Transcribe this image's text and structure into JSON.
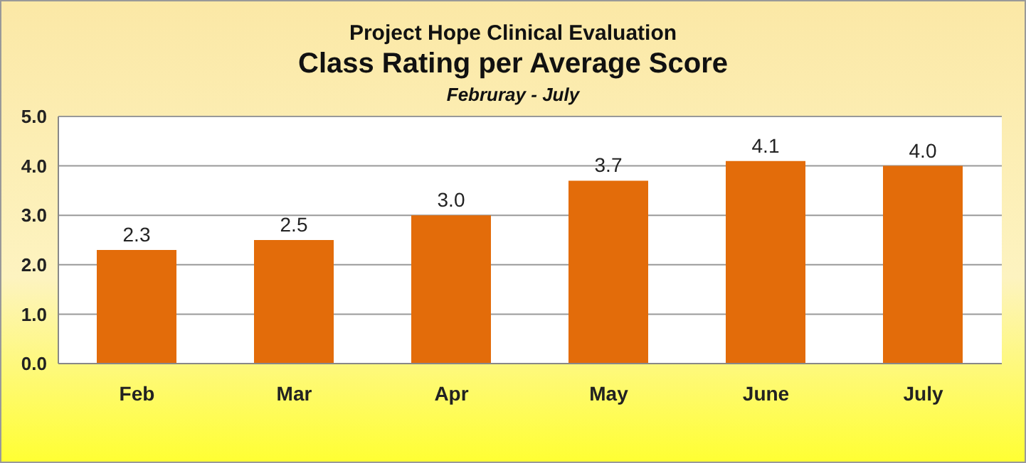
{
  "chart_data": {
    "type": "bar",
    "title": "Project Hope Clinical Evaluation",
    "subtitle": "Class Rating per Average Score",
    "annotations": [
      "Februray - July"
    ],
    "categories": [
      "Feb",
      "Mar",
      "Apr",
      "May",
      "June",
      "July"
    ],
    "values": [
      2.3,
      2.5,
      3.0,
      3.7,
      4.1,
      4.0
    ],
    "value_labels": [
      "2.3",
      "2.5",
      "3.0",
      "3.7",
      "4.1",
      "4.0"
    ],
    "color": "#e36c0a",
    "ylim": [
      0,
      5
    ],
    "yticks": [
      {
        "value": 0,
        "label": "0.0"
      },
      {
        "value": 1,
        "label": "1.0"
      },
      {
        "value": 2,
        "label": "2.0"
      },
      {
        "value": 3,
        "label": "3.0"
      },
      {
        "value": 4,
        "label": "4.0"
      },
      {
        "value": 5,
        "label": "5.0"
      }
    ],
    "grid": "y"
  }
}
